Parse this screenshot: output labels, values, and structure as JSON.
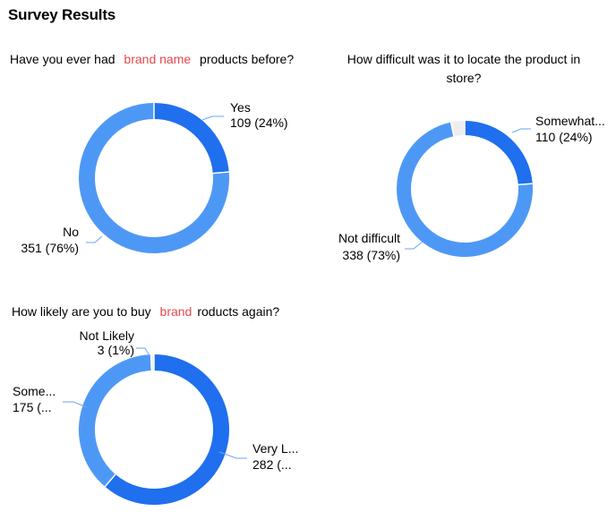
{
  "page": {
    "title": "Survey Results"
  },
  "colors": {
    "dark_blue": "#1f6fee",
    "light_blue": "#4e98f5",
    "gray": "#eeeeee",
    "leader": "#6aa6f5",
    "redacted_text": "#e8474a"
  },
  "chart_data": [
    {
      "type": "pie",
      "donut": true,
      "title_parts": [
        "Have you ever had",
        "brand name",
        "products before?"
      ],
      "slices": [
        {
          "label": "Yes",
          "value": 109,
          "pct_text": "109 (24%)",
          "color": "#1f6fee"
        },
        {
          "label": "No",
          "value": 351,
          "pct_text": "351 (76%)",
          "color": "#4e98f5"
        }
      ]
    },
    {
      "type": "pie",
      "donut": true,
      "title": "How difficult was it to locate the product in store?",
      "slices": [
        {
          "label": "Somewhat...",
          "value": 110,
          "pct_text": "110 (24%)",
          "color": "#1f6fee"
        },
        {
          "label": "Not difficult",
          "value": 338,
          "pct_text": "338 (73%)",
          "color": "#4e98f5"
        },
        {
          "label": "",
          "value": 15,
          "pct_text": "",
          "color": "#eeeeee"
        }
      ]
    },
    {
      "type": "pie",
      "donut": true,
      "title_parts": [
        "How likely are you to buy",
        "brand",
        "roducts again?"
      ],
      "slices": [
        {
          "label": "Very L...",
          "value": 282,
          "pct_text": "282 (...",
          "color": "#1f6fee"
        },
        {
          "label": "Some...",
          "value": 175,
          "pct_text": "175 (...",
          "color": "#4e98f5"
        },
        {
          "label": "Not Likely",
          "value": 3,
          "pct_text": "3 (1%)",
          "color": "#eeeeee"
        }
      ]
    }
  ]
}
